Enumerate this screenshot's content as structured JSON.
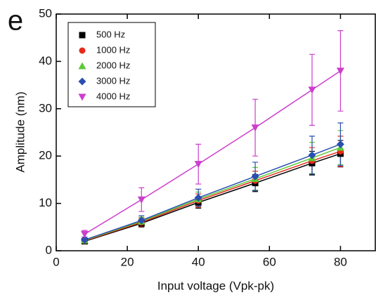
{
  "chart_data": {
    "type": "scatter",
    "panel_label": "e",
    "x_label": "Input voltage (Vpk-pk)",
    "y_label": "Amplitude (nm)",
    "x": [
      8,
      24,
      40,
      56,
      72,
      80
    ],
    "xlim": [
      0,
      90
    ],
    "xticks": [
      0,
      20,
      40,
      60,
      80
    ],
    "ylim": [
      0,
      50
    ],
    "yticks": [
      0,
      10,
      20,
      30,
      40,
      50
    ],
    "legend": "upper left",
    "series": [
      {
        "name": "500 Hz",
        "color": "#000000",
        "marker": "square",
        "values": [
          2.0,
          5.8,
          10.2,
          14.3,
          18.5,
          20.5
        ],
        "errors": [
          0.5,
          0.8,
          1.2,
          1.8,
          2.5,
          2.8
        ]
      },
      {
        "name": "1000 Hz",
        "color": "#e8291c",
        "marker": "circle",
        "values": [
          2.1,
          6.0,
          10.6,
          14.8,
          19.0,
          21.0
        ],
        "errors": [
          0.5,
          0.9,
          1.4,
          2.0,
          2.8,
          3.2
        ]
      },
      {
        "name": "2000 Hz",
        "color": "#5cc936",
        "marker": "triangle-up",
        "values": [
          2.2,
          6.2,
          10.9,
          15.2,
          19.6,
          21.8
        ],
        "errors": [
          0.5,
          0.9,
          1.5,
          2.4,
          3.3,
          3.6
        ]
      },
      {
        "name": "3000 Hz",
        "color": "#2a4fb0",
        "marker": "diamond",
        "values": [
          2.3,
          6.4,
          11.2,
          15.7,
          20.2,
          22.5
        ],
        "errors": [
          0.6,
          1.0,
          1.8,
          3.0,
          4.0,
          4.5
        ]
      },
      {
        "name": "4000 Hz",
        "color": "#cc3fcc",
        "marker": "triangle-down",
        "values": [
          3.5,
          10.8,
          18.3,
          26.0,
          34.0,
          38.0
        ],
        "errors": [
          0.8,
          2.5,
          4.2,
          6.0,
          7.5,
          8.5
        ]
      }
    ]
  }
}
